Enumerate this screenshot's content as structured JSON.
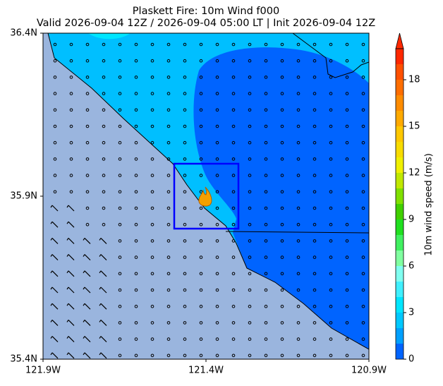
{
  "map": {
    "title": "Plaskett Fire: 10m Wind f000",
    "subtitle": "Valid 2026-09-04 12Z / 2026-09-04 05:00 LT | Init 2026-09-04 12Z",
    "xlim": [
      -121.9,
      -120.9
    ],
    "ylim": [
      35.4,
      36.4
    ],
    "xticks": [
      {
        "value": -121.9,
        "label": "121.9W"
      },
      {
        "value": -121.4,
        "label": "121.4W"
      },
      {
        "value": -120.9,
        "label": "120.9W"
      }
    ],
    "yticks": [
      {
        "value": 35.4,
        "label": "35.4N"
      },
      {
        "value": 35.9,
        "label": "35.9N"
      },
      {
        "value": 36.4,
        "label": "36.4N"
      }
    ],
    "colorbar": {
      "label": "10m wind speed (m/s)",
      "lim": [
        0,
        20
      ],
      "ticks": [
        0,
        3,
        6,
        9,
        12,
        15,
        18
      ],
      "colors": [
        "#0064ff",
        "#00a0ff",
        "#00c8ff",
        "#00e6ff",
        "#40f0ff",
        "#80fff0",
        "#80ffa0",
        "#40f060",
        "#20e020",
        "#40d000",
        "#80e000",
        "#c0e800",
        "#f0f000",
        "#f8dc00",
        "#ffc800",
        "#ffaa00",
        "#ff8c00",
        "#ff6e00",
        "#ff5000",
        "#ff2800"
      ]
    }
  }
}
